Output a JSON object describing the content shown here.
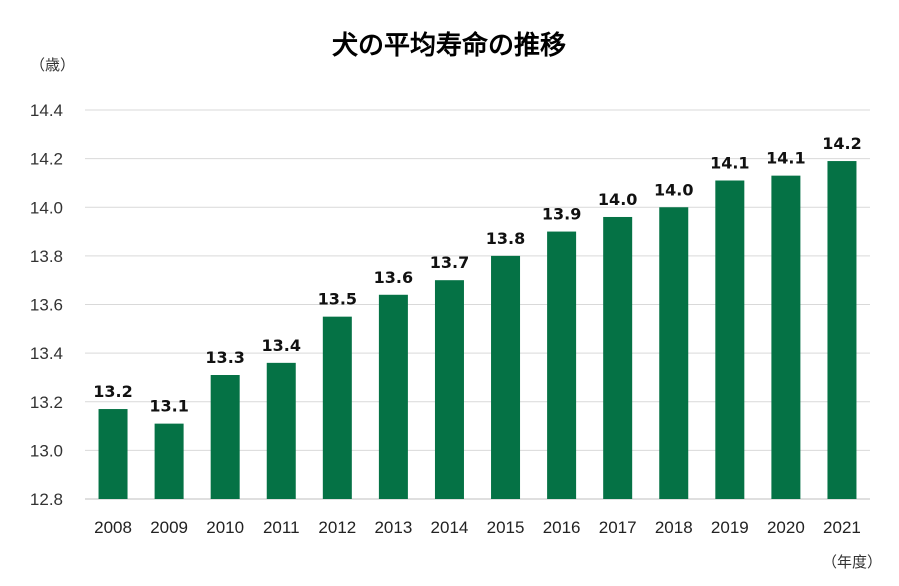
{
  "chart_data": {
    "type": "bar",
    "title": "犬の平均寿命の推移",
    "ylabel": "（歳）",
    "xlabel": "（年度）",
    "categories": [
      "2008",
      "2009",
      "2010",
      "2011",
      "2012",
      "2013",
      "2014",
      "2015",
      "2016",
      "2017",
      "2018",
      "2019",
      "2020",
      "2021"
    ],
    "values": [
      13.17,
      13.11,
      13.31,
      13.36,
      13.55,
      13.64,
      13.7,
      13.8,
      13.9,
      13.96,
      14.0,
      14.11,
      14.13,
      14.19
    ],
    "data_labels": [
      "13.2",
      "13.1",
      "13.3",
      "13.4",
      "13.5",
      "13.6",
      "13.7",
      "13.8",
      "13.9",
      "14.0",
      "14.0",
      "14.1",
      "14.1",
      "14.2"
    ],
    "ylim": [
      12.8,
      14.4
    ],
    "yticks": [
      "12.8",
      "13.0",
      "13.2",
      "13.4",
      "13.6",
      "13.8",
      "14.0",
      "14.2",
      "14.4"
    ],
    "grid": true,
    "legend": "none",
    "bar_color": "#057245"
  }
}
